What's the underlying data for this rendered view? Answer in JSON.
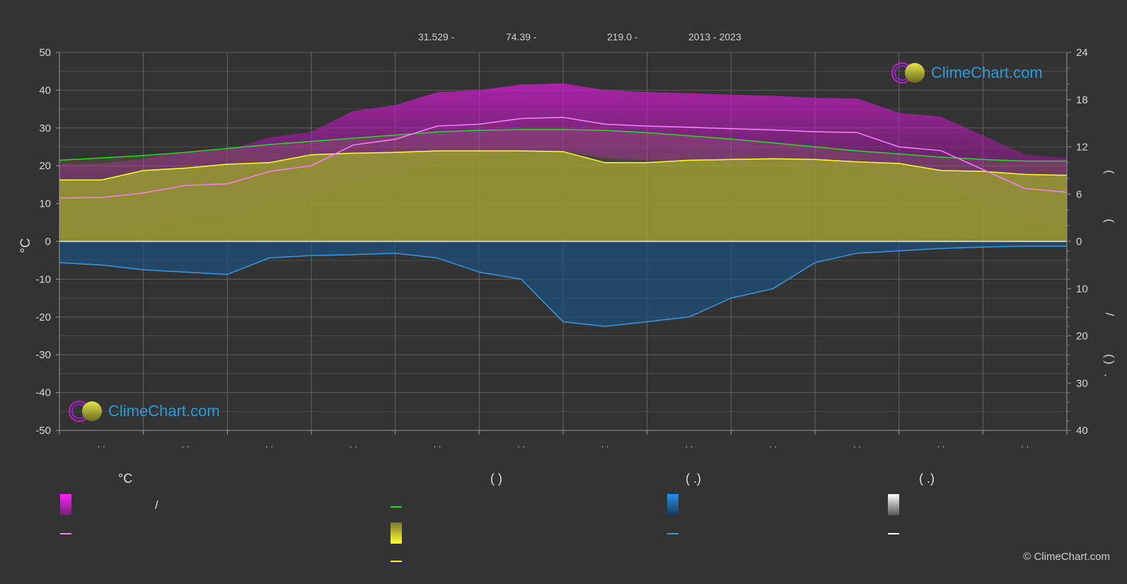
{
  "header": {
    "latitude": "31.529 -",
    "longitude": "74.39 -",
    "elevation": "219.0 -",
    "years": "2013 - 2023"
  },
  "brand": {
    "name": "ClimeChart.com",
    "copyright": "© ClimeChart.com"
  },
  "legend": {
    "temp_unit": "°C",
    "sun_unit": "(          )",
    "rain_unit": "(   .)",
    "snow_unit": "(   .)",
    "slash": "/"
  },
  "colors": {
    "background": "#333333",
    "daily_range": "#e020e0",
    "avg_temp": "#ff80ff",
    "daylight": "#22dd22",
    "sunshine": "#cccc33",
    "sunshine_line": "#ffff33",
    "rain": "#2a8ad4",
    "rain_line": "#3a96e0",
    "snow": "#ffffff"
  },
  "chart_data": {
    "type": "line",
    "left_axis": {
      "label": "°C",
      "ticks": [
        "50",
        "40",
        "30",
        "20",
        "10",
        "0",
        "-10",
        "-20",
        "-30",
        "-40",
        "-50"
      ],
      "ylim": [
        -50,
        50
      ]
    },
    "right_axis_top": {
      "ticks": [
        "24",
        "18",
        "12",
        "6",
        "0"
      ],
      "ylim": [
        0,
        24
      ]
    },
    "right_axis_bottom": {
      "ticks": [
        "0",
        "10",
        "20",
        "30",
        "40"
      ],
      "ylim": [
        0,
        40
      ]
    },
    "right_axis_glyphs": [
      "(",
      "(",
      "/",
      "(",
      "·",
      ")"
    ],
    "month_labels": [
      ". .",
      ". .",
      ". .",
      ". .",
      ". .",
      ". .",
      ". .",
      ". .",
      ". .",
      ". .",
      ". .",
      ". ."
    ],
    "grid": true,
    "x": [
      0,
      0.5,
      1,
      1.5,
      2,
      2.5,
      3,
      3.5,
      4,
      4.5,
      5,
      5.5,
      6,
      6.5,
      7,
      7.5,
      8,
      8.5,
      9,
      9.5,
      10,
      10.5,
      11,
      11.5,
      12
    ],
    "series": [
      {
        "key": "avg_temp",
        "values": [
          11.5,
          11.6,
          12.8,
          14.8,
          15.2,
          18.5,
          20.0,
          25.5,
          27.0,
          30.5,
          31.0,
          32.5,
          32.8,
          31.0,
          30.5,
          30.2,
          29.8,
          29.5,
          29.0,
          28.8,
          25.0,
          24.0,
          19.0,
          14.0,
          13.0
        ]
      },
      {
        "key": "daylight_hours",
        "values": [
          10.3,
          10.6,
          10.9,
          11.3,
          11.8,
          12.3,
          12.7,
          13.1,
          13.5,
          13.9,
          14.1,
          14.2,
          14.2,
          14.1,
          13.8,
          13.4,
          13.0,
          12.5,
          12.0,
          11.5,
          11.1,
          10.7,
          10.4,
          10.2,
          10.2
        ]
      },
      {
        "key": "sunshine_hours",
        "values": [
          7.8,
          7.8,
          9.0,
          9.3,
          9.8,
          10.0,
          11.0,
          11.2,
          11.3,
          11.5,
          11.5,
          11.5,
          11.4,
          10.0,
          10.0,
          10.3,
          10.4,
          10.5,
          10.4,
          10.1,
          9.9,
          9.0,
          8.9,
          8.5,
          8.4
        ]
      },
      {
        "key": "rain_mm",
        "values": [
          4.5,
          5.0,
          6.0,
          6.5,
          7.0,
          3.5,
          3.0,
          2.8,
          2.5,
          3.5,
          6.5,
          8.0,
          17.0,
          18.0,
          17.0,
          16.0,
          12.0,
          10.0,
          4.5,
          2.5,
          2.0,
          1.5,
          1.2,
          1.0,
          1.0
        ]
      }
    ]
  }
}
